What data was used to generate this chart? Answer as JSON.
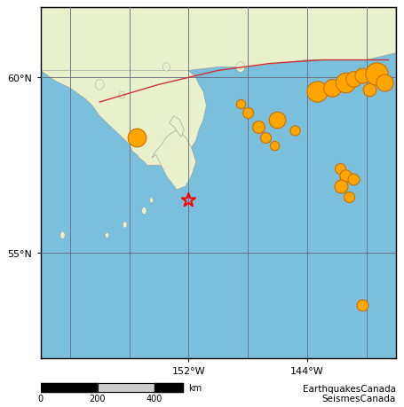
{
  "map_xlim": [
    -162,
    -138
  ],
  "map_ylim": [
    52.0,
    62.0
  ],
  "ocean_color": "#7ABFDC",
  "land_color": "#E8F0CC",
  "land_edge_color": "#999999",
  "grid_color": "#666677",
  "grid_lw": 0.6,
  "lat_ticks": [
    55,
    60
  ],
  "lon_ticks": [
    -152,
    -144
  ],
  "lat_labels": [
    "55°N",
    "60°N"
  ],
  "lon_labels": [
    "152°W",
    "144°W"
  ],
  "star_lon": -152.0,
  "star_lat": 56.5,
  "star_color": "red",
  "star_size": 130,
  "fault_line": [
    [
      -158.0,
      59.3
    ],
    [
      -154.0,
      59.8
    ],
    [
      -150.0,
      60.2
    ],
    [
      -146.5,
      60.4
    ],
    [
      -143.0,
      60.5
    ],
    [
      -140.0,
      60.5
    ],
    [
      -138.5,
      60.5
    ]
  ],
  "fault_color": "#CC3333",
  "fault_lw": 1.0,
  "eq_marker_color": "#FFA500",
  "eq_marker_edge": "#CC7000",
  "earthquakes": [
    {
      "lon": -155.5,
      "lat": 58.3,
      "size": 220
    },
    {
      "lon": -148.0,
      "lat": 59.0,
      "size": 75
    },
    {
      "lon": -148.5,
      "lat": 59.25,
      "size": 55
    },
    {
      "lon": -147.3,
      "lat": 58.6,
      "size": 100
    },
    {
      "lon": -146.8,
      "lat": 58.3,
      "size": 75
    },
    {
      "lon": -146.2,
      "lat": 58.05,
      "size": 55
    },
    {
      "lon": -146.0,
      "lat": 58.8,
      "size": 180
    },
    {
      "lon": -144.8,
      "lat": 58.5,
      "size": 65
    },
    {
      "lon": -143.3,
      "lat": 59.6,
      "size": 280
    },
    {
      "lon": -142.3,
      "lat": 59.7,
      "size": 200
    },
    {
      "lon": -141.4,
      "lat": 59.85,
      "size": 260
    },
    {
      "lon": -140.9,
      "lat": 59.95,
      "size": 160
    },
    {
      "lon": -140.3,
      "lat": 60.05,
      "size": 150
    },
    {
      "lon": -139.8,
      "lat": 59.65,
      "size": 110
    },
    {
      "lon": -139.3,
      "lat": 60.1,
      "size": 330
    },
    {
      "lon": -138.8,
      "lat": 59.85,
      "size": 190
    },
    {
      "lon": -141.8,
      "lat": 57.4,
      "size": 75
    },
    {
      "lon": -141.4,
      "lat": 57.2,
      "size": 95
    },
    {
      "lon": -141.7,
      "lat": 56.9,
      "size": 115
    },
    {
      "lon": -140.9,
      "lat": 57.1,
      "size": 85
    },
    {
      "lon": -141.2,
      "lat": 56.6,
      "size": 75
    },
    {
      "lon": -140.3,
      "lat": 53.5,
      "size": 85
    }
  ],
  "figsize": [
    4.55,
    4.6
  ],
  "dpi": 100,
  "tick_fontsize": 8,
  "attr_fontsize": 7.5,
  "attribution_line1": "EarthquakesCanada",
  "attribution_line2": "SeismesCanada"
}
